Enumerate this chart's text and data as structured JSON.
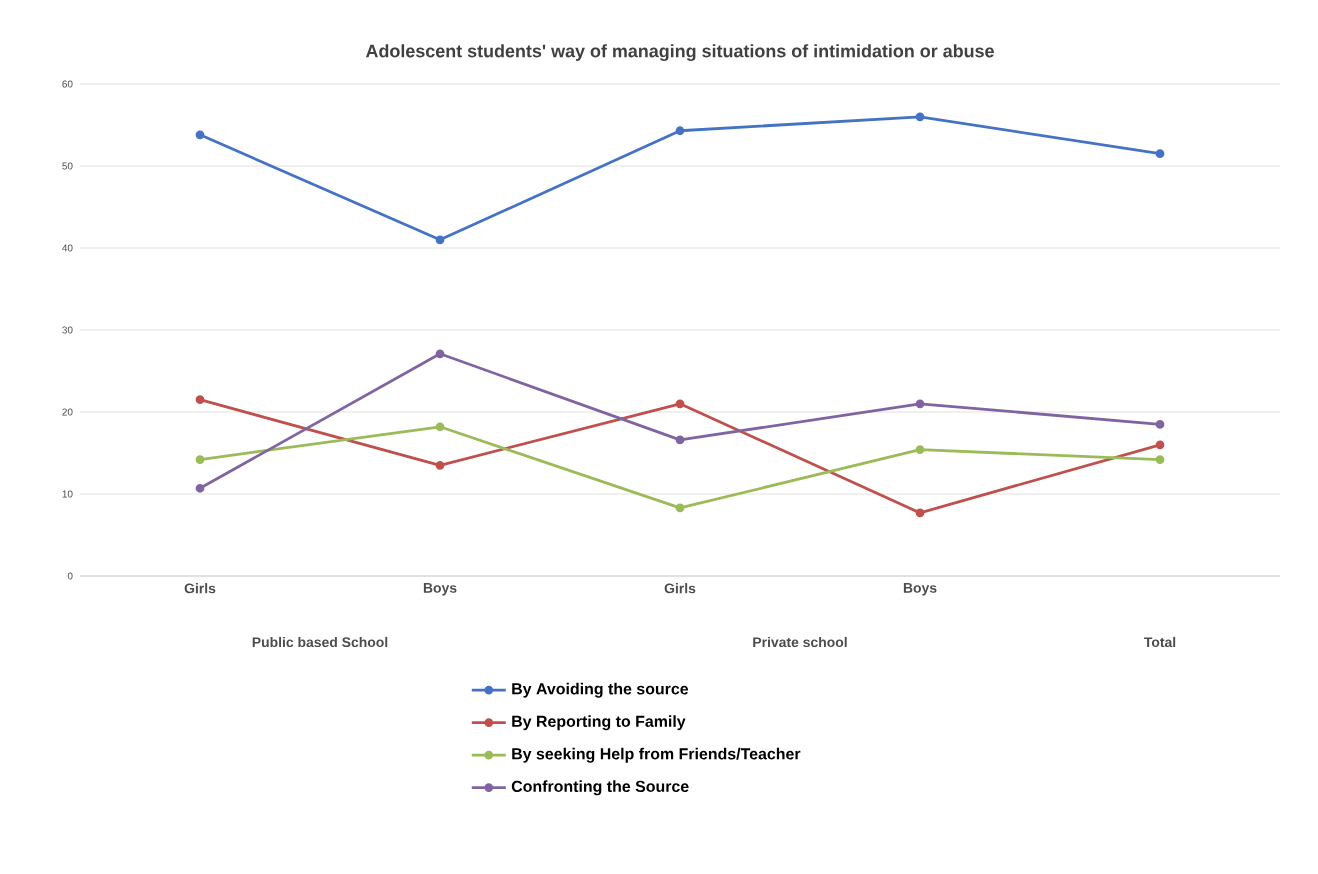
{
  "chart_data": {
    "type": "line",
    "title": "Adolescent students' way of managing situations of intimidation or abuse",
    "categories": [
      "Girls",
      "Boys",
      "Girls",
      "Boys",
      null
    ],
    "series": [
      {
        "name": "By Avoiding the source",
        "color": "#4472c4",
        "values": [
          53.8,
          41,
          54.3,
          56,
          51.5
        ]
      },
      {
        "name": "By Reporting to Family",
        "color": "#c0504d",
        "values": [
          21.5,
          13.5,
          21,
          7.7,
          16
        ]
      },
      {
        "name": "By seeking Help from Friends/Teacher",
        "color": "#9bbb59",
        "values": [
          14.2,
          18.2,
          8.3,
          15.4,
          14.2
        ]
      },
      {
        "name": "Confronting the Source",
        "color": "#8064a2",
        "values": [
          10.7,
          27.1,
          16.6,
          21,
          18.5
        ]
      }
    ],
    "annotations": [
      "Public based School",
      "Private school",
      "Total"
    ],
    "ylim": [
      0,
      60
    ],
    "yticks": [
      0,
      10,
      20,
      30,
      40,
      50,
      60
    ],
    "grid": "y",
    "legend": "bottom",
    "marker": "circle",
    "line_style": "solid"
  }
}
